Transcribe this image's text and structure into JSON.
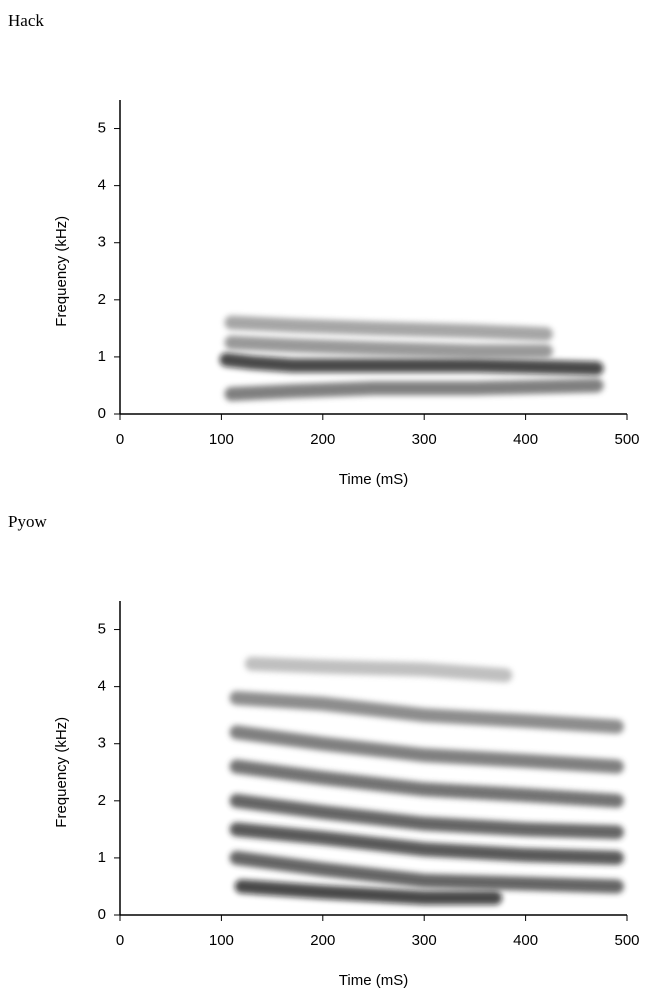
{
  "chart_data": [
    {
      "type": "spectrogram",
      "title": "Hack",
      "x_label": "Time (mS)",
      "y_label": "Frequency (kHz)",
      "xlim": [
        0,
        500
      ],
      "ylim": [
        0,
        5.5
      ],
      "xticks": [
        0,
        100,
        200,
        300,
        400,
        500
      ],
      "yticks": [
        0,
        1,
        2,
        3,
        4,
        5
      ],
      "bands": [
        {
          "x": [
            0,
            100,
            200,
            300,
            400,
            500
          ],
          "values": [
            0.05,
            0.05,
            0.05,
            0.05,
            0.05,
            0.05
          ],
          "color": "#999999"
        },
        {
          "x": [
            110,
            170,
            250,
            350,
            470
          ],
          "values": [
            0.35,
            0.4,
            0.45,
            0.45,
            0.5
          ],
          "color": "#555555"
        },
        {
          "x": [
            110,
            170,
            250,
            350,
            470
          ],
          "values": [
            0.6,
            0.6,
            0.6,
            0.6,
            0.6
          ],
          "color": "#444444"
        },
        {
          "x": [
            105,
            130,
            170,
            250,
            350,
            470
          ],
          "values": [
            0.95,
            0.9,
            0.85,
            0.85,
            0.85,
            0.8
          ],
          "color": "#111111"
        },
        {
          "x": [
            110,
            170,
            250,
            350,
            420
          ],
          "values": [
            1.25,
            1.2,
            1.15,
            1.1,
            1.1
          ],
          "color": "#777777"
        },
        {
          "x": [
            110,
            170,
            250,
            350,
            420
          ],
          "values": [
            1.6,
            1.55,
            1.5,
            1.45,
            1.4
          ],
          "color": "#888888"
        }
      ]
    },
    {
      "type": "spectrogram",
      "title": "Pyow",
      "x_label": "Time (mS)",
      "y_label": "Frequency (kHz)",
      "xlim": [
        0,
        500
      ],
      "ylim": [
        0,
        5.5
      ],
      "xticks": [
        0,
        100,
        200,
        300,
        400,
        500
      ],
      "yticks": [
        0,
        1,
        2,
        3,
        4,
        5
      ],
      "bands": [
        {
          "x": [
            0,
            100,
            200,
            300,
            400,
            500
          ],
          "values": [
            0.05,
            0.05,
            0.05,
            0.05,
            0.05,
            0.05
          ],
          "color": "#999999"
        },
        {
          "x": [
            120,
            200,
            300,
            370
          ],
          "values": [
            0.5,
            0.4,
            0.3,
            0.3
          ],
          "color": "#111111"
        },
        {
          "x": [
            115,
            200,
            300,
            400,
            490
          ],
          "values": [
            1.0,
            0.8,
            0.6,
            0.55,
            0.5
          ],
          "color": "#333333"
        },
        {
          "x": [
            115,
            200,
            300,
            400,
            490
          ],
          "values": [
            1.5,
            1.35,
            1.15,
            1.05,
            1.0
          ],
          "color": "#222222"
        },
        {
          "x": [
            115,
            200,
            300,
            400,
            490
          ],
          "values": [
            2.0,
            1.8,
            1.6,
            1.5,
            1.45
          ],
          "color": "#333333"
        },
        {
          "x": [
            115,
            200,
            300,
            400,
            490
          ],
          "values": [
            2.6,
            2.4,
            2.2,
            2.1,
            2.0
          ],
          "color": "#444444"
        },
        {
          "x": [
            115,
            200,
            300,
            400,
            490
          ],
          "values": [
            3.2,
            3.0,
            2.8,
            2.7,
            2.6
          ],
          "color": "#555555"
        },
        {
          "x": [
            115,
            200,
            300,
            400,
            490
          ],
          "values": [
            3.8,
            3.7,
            3.5,
            3.4,
            3.3
          ],
          "color": "#666666"
        },
        {
          "x": [
            130,
            200,
            300,
            380
          ],
          "values": [
            4.4,
            4.35,
            4.3,
            4.2
          ],
          "color": "#aaaaaa"
        }
      ]
    }
  ]
}
